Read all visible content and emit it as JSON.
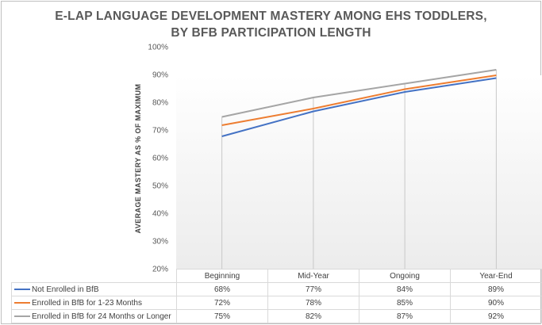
{
  "chart_data": {
    "type": "line",
    "title": "E-LAP LANGUAGE DEVELOPMENT MASTERY AMONG EHS TODDLERS, BY BFB PARTICIPATION LENGTH",
    "title_lines": [
      "E-LAP LANGUAGE DEVELOPMENT MASTERY AMONG EHS TODDLERS,",
      "BY BFB PARTICIPATION LENGTH"
    ],
    "ylabel": "AVERAGE MASTERY AS % OF MAXIMUM",
    "xlabel": "",
    "ylim": [
      20,
      100
    ],
    "yticks": [
      "100%",
      "90%",
      "80%",
      "70%",
      "60%",
      "50%",
      "40%",
      "30%",
      "20%"
    ],
    "categories": [
      "Beginning",
      "Mid-Year",
      "Ongoing",
      "Year-End"
    ],
    "series": [
      {
        "name": "Not Enrolled in BfB",
        "color": "#4472c4",
        "values": [
          68,
          77,
          84,
          89
        ],
        "labels": [
          "68%",
          "77%",
          "84%",
          "89%"
        ]
      },
      {
        "name": "Enrolled in BfB for 1-23 Months",
        "color": "#ed7d31",
        "values": [
          72,
          78,
          85,
          90
        ],
        "labels": [
          "72%",
          "78%",
          "85%",
          "90%"
        ]
      },
      {
        "name": "Enrolled in BfB for 24 Months or Longer",
        "color": "#a5a5a5",
        "values": [
          75,
          82,
          87,
          92
        ],
        "labels": [
          "75%",
          "82%",
          "87%",
          "92%"
        ]
      }
    ],
    "legend": "data-table",
    "grid": false,
    "drop_lines": true
  }
}
